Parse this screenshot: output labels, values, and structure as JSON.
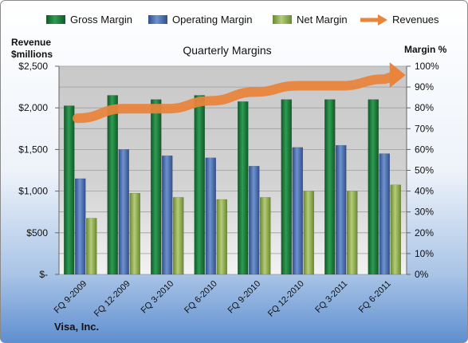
{
  "chart_data": {
    "type": "bar",
    "title": "Quarterly Margins",
    "categories": [
      "FQ 9-2009",
      "FQ 12-2009",
      "FQ 3-2010",
      "FQ 6-2010",
      "FQ 9-2010",
      "FQ 12-2010",
      "FQ 3-2011",
      "FQ 6-2011"
    ],
    "series": [
      {
        "name": "Gross Margin",
        "axis": "right",
        "color": "#1e7a3c",
        "values": [
          81,
          86,
          84,
          86,
          83,
          84,
          84,
          84
        ]
      },
      {
        "name": "Operating Margin",
        "axis": "right",
        "color": "#4f73b3",
        "values": [
          46,
          60,
          57,
          56,
          52,
          61,
          62,
          58
        ]
      },
      {
        "name": "Net Margin",
        "axis": "right",
        "color": "#8fae4b",
        "values": [
          27,
          39,
          37,
          36,
          37,
          40,
          40,
          43
        ]
      }
    ],
    "revenue_series": {
      "name": "Revenues",
      "axis": "left",
      "color": "#e8843c",
      "values": [
        1875,
        1990,
        1990,
        2085,
        2190,
        2265,
        2265,
        2345
      ]
    },
    "y_left": {
      "label_line1": "Revenue",
      "label_line2": "$millions",
      "min": 0,
      "max": 2500,
      "ticks": [
        "$-",
        "$500",
        "$1,000",
        "$1,500",
        "$2,000",
        "$2,500"
      ]
    },
    "y_right": {
      "label": "Margin %",
      "min": 0,
      "max": 100,
      "ticks": [
        "0%",
        "10%",
        "20%",
        "30%",
        "40%",
        "50%",
        "60%",
        "70%",
        "80%",
        "90%",
        "100%"
      ]
    },
    "legend_position": "top",
    "grid": true,
    "footer": "Visa, Inc."
  }
}
